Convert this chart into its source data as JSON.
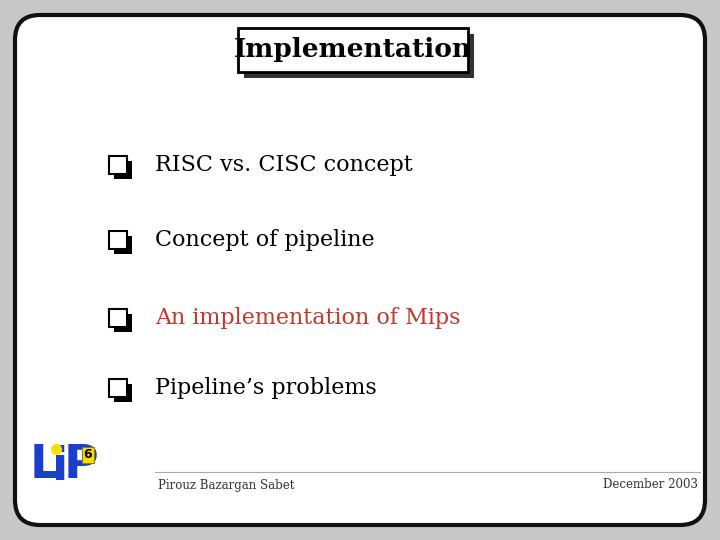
{
  "title": "Implementation",
  "bullet_items": [
    {
      "text": "RISC vs. CISC concept",
      "color": "#000000"
    },
    {
      "text": "Concept of pipeline",
      "color": "#000000"
    },
    {
      "text": "An implementation of Mips",
      "color": "#c0392b"
    },
    {
      "text": "Pipeline’s problems",
      "color": "#000000"
    }
  ],
  "footer_left": "Pirouz Bazargan Sabet",
  "footer_right": "December 2003",
  "bg_color": "#ffffff",
  "outer_bg": "#c8c8c8",
  "border_color": "#111111",
  "title_box_color": "#ffffff",
  "title_box_border": "#000000",
  "shadow_color": "#333333",
  "lip_color": "#1a3fcc",
  "lip_dot_color": "#ffdd00",
  "lip_6_color": "#ffdd00"
}
